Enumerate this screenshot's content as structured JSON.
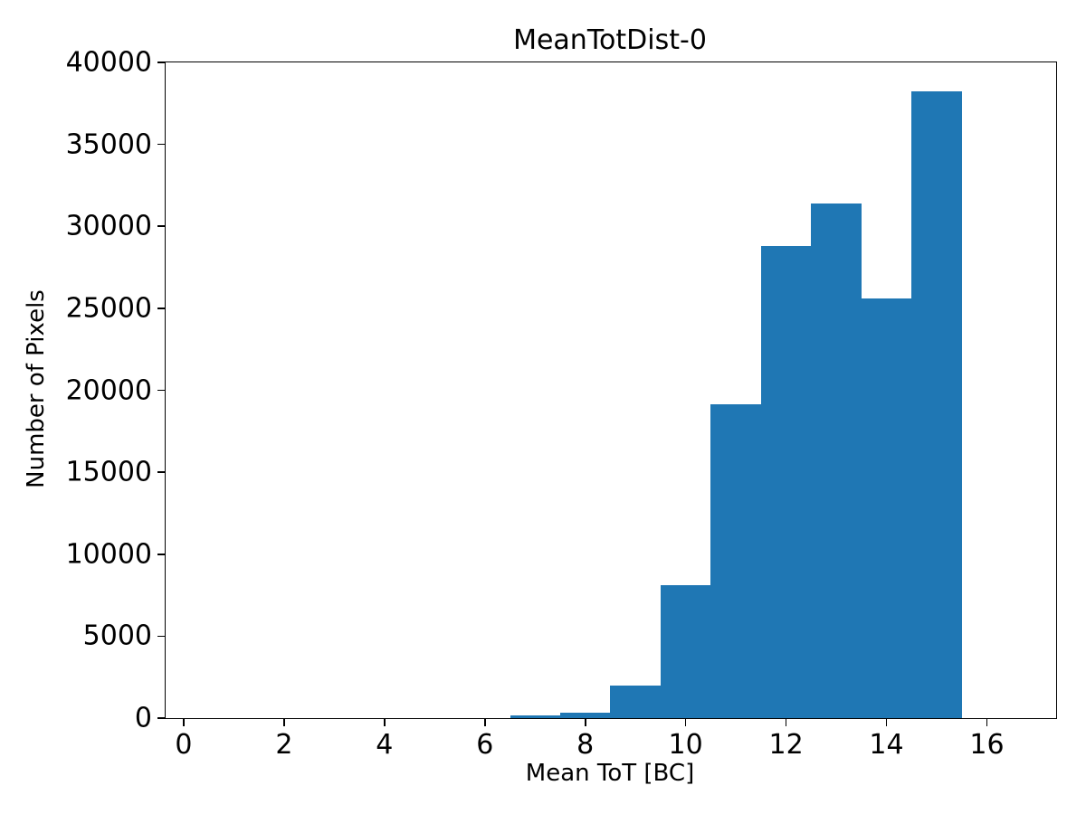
{
  "chart_data": {
    "type": "bar",
    "subtype": "histogram",
    "title": "MeanTotDist-0",
    "xlabel": "Mean ToT [BC]",
    "ylabel": "Number of Pixels",
    "bar_color": "#1f77b4",
    "bin_edges": [
      6.5,
      7.5,
      8.5,
      9.5,
      10.5,
      11.5,
      12.5,
      13.5,
      14.5,
      15.5
    ],
    "counts": [
      150,
      320,
      1990,
      8110,
      19150,
      28800,
      31400,
      25590,
      38230
    ],
    "xlim": [
      -0.36,
      17.38
    ],
    "ylim": [
      0,
      40000
    ],
    "xticks": [
      0,
      2,
      4,
      6,
      8,
      10,
      12,
      14,
      16
    ],
    "yticks": [
      0,
      5000,
      10000,
      15000,
      20000,
      25000,
      30000,
      35000,
      40000
    ],
    "grid": false,
    "legend": null
  }
}
